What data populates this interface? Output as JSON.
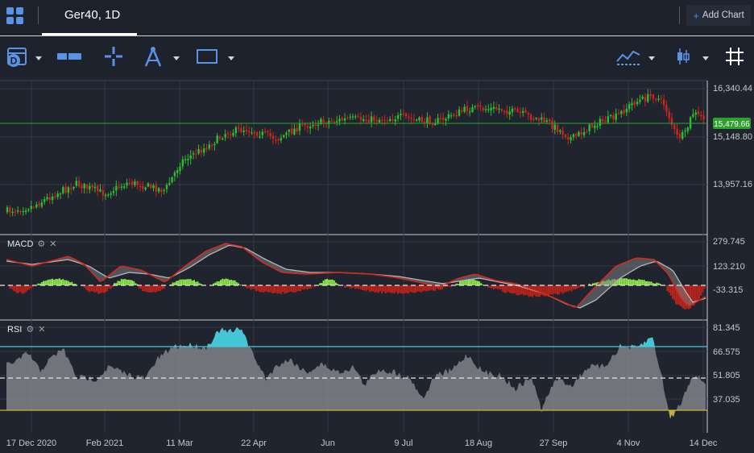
{
  "header": {
    "tab_title": "Ger40, 1D",
    "add_chart_label": "Add Chart",
    "colors": {
      "accent": "#4f86d9",
      "background": "#1e222d"
    }
  },
  "toolbar": {
    "icons": [
      "date-range-icon",
      "measure-icon",
      "crosshair-icon",
      "drawing-compass-icon",
      "rectangle-icon",
      "indicators-icon",
      "candle-style-icon",
      "grid-icon"
    ],
    "date_badge": "D"
  },
  "chart": {
    "price_labels": [
      "16,340.44",
      "15,148.80",
      "13,957.16"
    ],
    "current_price": "15,479.66",
    "macd_label": "MACD",
    "macd_levels": [
      "279.745",
      "123.210",
      "-33.315"
    ],
    "rsi_label": "RSI",
    "rsi_levels": [
      "81.345",
      "66.575",
      "51.805",
      "37.035"
    ],
    "x_labels": [
      "17 Dec 2020",
      "Feb 2021",
      "11 Mar",
      "22 Apr",
      "Jun",
      "9 Jul",
      "18 Aug",
      "27 Sep",
      "4 Nov",
      "14 Dec"
    ],
    "colors": {
      "up": "#2ebd2e",
      "down": "#c8261e",
      "price_line": "#2da52d",
      "macd_line": "#d12a1f",
      "signal_line": "#b6b6b6",
      "hist_pos": "#8fe84b",
      "hist_neg": "#b7241c",
      "rsi_upper": "#3fcfe0",
      "rsi_lower": "#c9b23a",
      "rsi_fill": "#8d8f96"
    }
  }
}
